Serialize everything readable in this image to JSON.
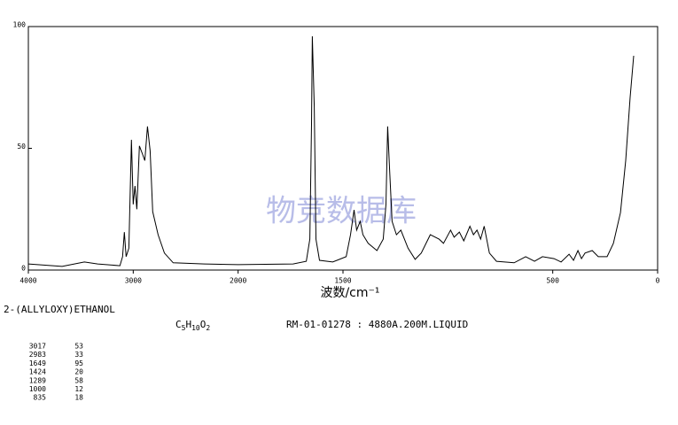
{
  "chart_data": {
    "type": "line",
    "x": [
      4000,
      3678,
      3466,
      3339,
      3127,
      3102,
      3085,
      3068,
      3042,
      3017,
      3000,
      2983,
      2966,
      2941,
      2915,
      2890,
      2864,
      2839,
      2814,
      2763,
      2703,
      2619,
      2322,
      2000,
      1738,
      1675,
      1658,
      1650,
      1646,
      1637,
      1629,
      1612,
      1549,
      1485,
      1464,
      1447,
      1435,
      1418,
      1405,
      1380,
      1338,
      1308,
      1295,
      1287,
      1278,
      1266,
      1245,
      1224,
      1190,
      1156,
      1127,
      1084,
      1042,
      1021,
      987,
      970,
      945,
      924,
      895,
      878,
      861,
      844,
      827,
      802,
      768,
      684,
      629,
      587,
      549,
      494,
      460,
      422,
      401,
      380,
      363,
      346,
      312,
      283,
      241,
      211,
      177,
      152,
      131,
      114
    ],
    "series": [
      {
        "color": "#000000",
        "values": [
          2.5,
          1.5,
          3.3,
          2.5,
          1.8,
          5.5,
          15.6,
          5.5,
          9,
          53.5,
          27,
          34.5,
          25,
          51,
          48,
          45,
          59,
          49,
          24,
          14.5,
          7,
          3,
          2.5,
          2.2,
          2.5,
          3.6,
          12.7,
          60,
          96,
          67,
          12.7,
          4,
          3.3,
          5.5,
          14.5,
          24.7,
          16.4,
          20,
          14.5,
          11,
          8,
          12.7,
          27,
          59,
          42,
          20,
          14.5,
          16.4,
          9,
          4.4,
          7,
          14.5,
          12.7,
          11,
          16.4,
          13.5,
          15.6,
          12,
          18,
          14.5,
          16.4,
          12.7,
          18,
          7,
          3.6,
          3,
          5.5,
          3.6,
          5.5,
          4.7,
          3.3,
          6.5,
          4,
          8,
          4.7,
          7,
          8,
          5.5,
          5.5,
          11,
          23.6,
          45,
          71,
          88
        ]
      }
    ],
    "xlim": [
      4000,
      0
    ],
    "xticks": [
      4000,
      3000,
      2000,
      1500,
      500,
      0
    ],
    "x_scale_break": 2000,
    "ylim": [
      0,
      100
    ],
    "yticks": [
      0,
      50,
      100
    ],
    "x_label": "波数/cm⁻¹",
    "watermark": "物竞数据库"
  },
  "compound": "2-(ALLYLOXY)ETHANOL",
  "formula": "C5H10O2",
  "sample": "RM-01-01278 : 4880A.200M.LIQUID",
  "peaks": [
    [
      3017,
      53
    ],
    [
      2983,
      33
    ],
    [
      1649,
      95
    ],
    [
      1424,
      20
    ],
    [
      1289,
      58
    ],
    [
      1000,
      12
    ],
    [
      835,
      18
    ]
  ]
}
